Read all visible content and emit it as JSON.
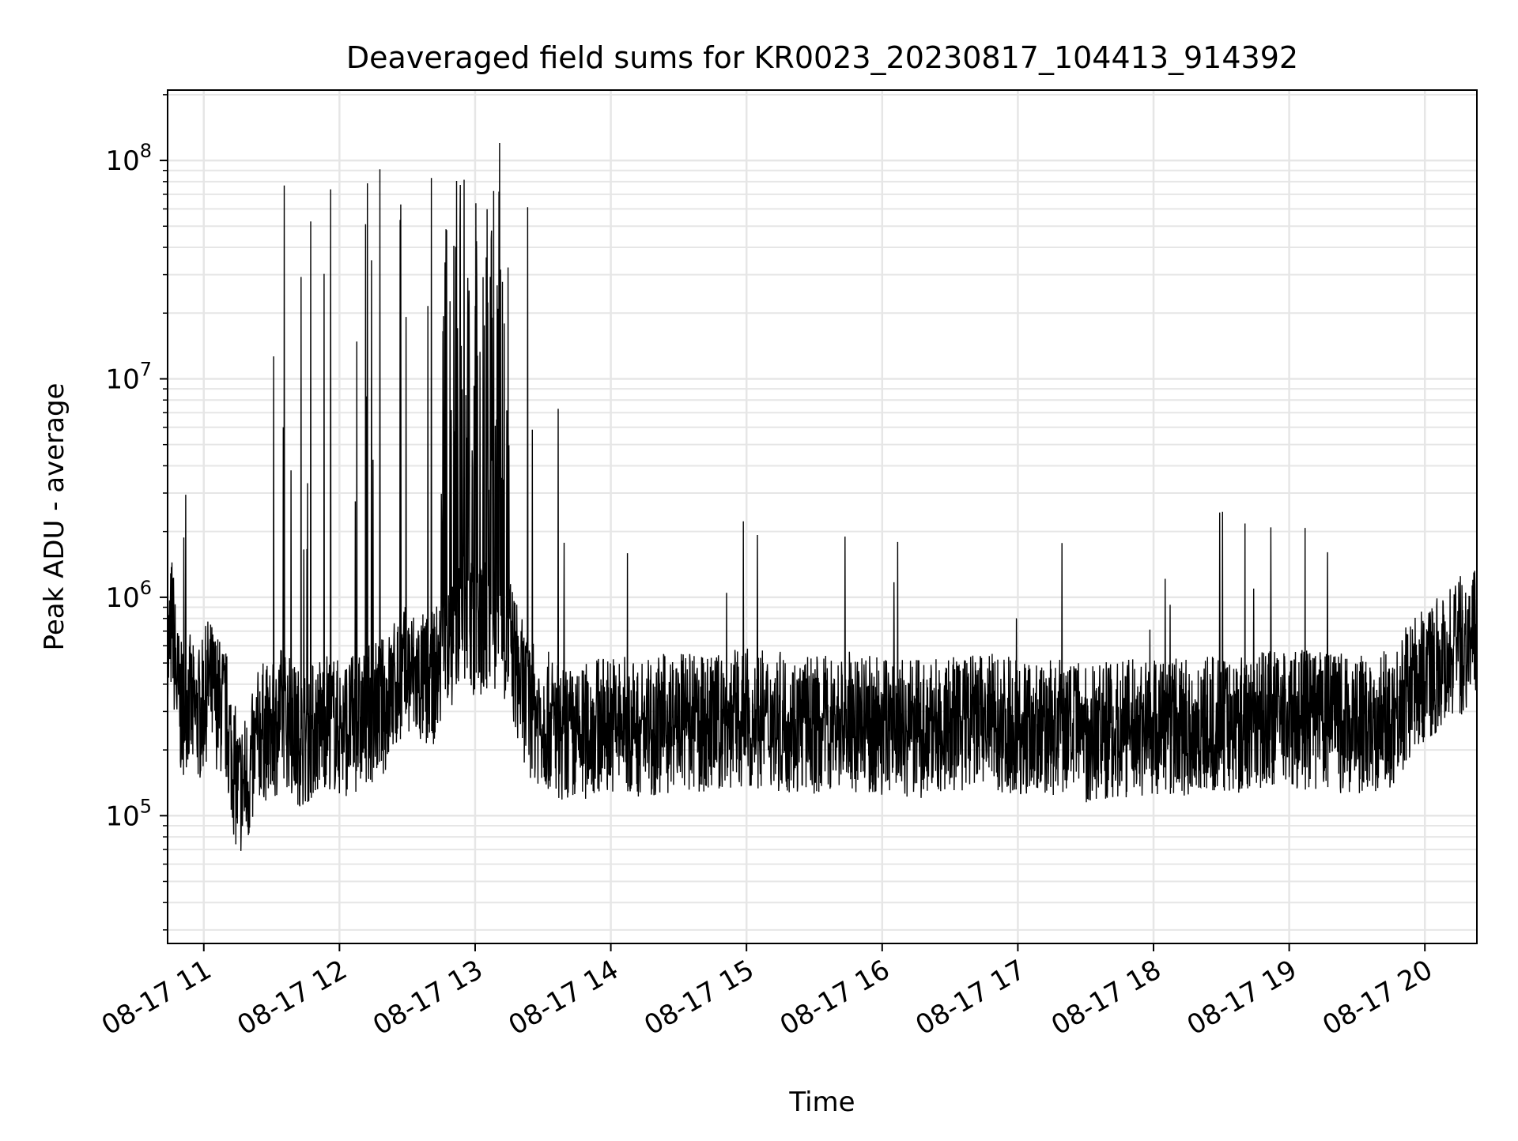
{
  "chart_data": {
    "type": "line",
    "title": "Deaveraged field sums for KR0023_20230817_104413_914392",
    "xlabel": "Time",
    "ylabel": "Peak ADU - average",
    "y_scale": "log",
    "ylim": [
      26000,
      210000000
    ],
    "xlim": [
      "2023-08-17 10:44",
      "2023-08-17 20:23"
    ],
    "x_ticks": [
      "2023-08-17 11:00",
      "2023-08-17 12:00",
      "2023-08-17 13:00",
      "2023-08-17 14:00",
      "2023-08-17 15:00",
      "2023-08-17 16:00",
      "2023-08-17 17:00",
      "2023-08-17 18:00",
      "2023-08-17 19:00",
      "2023-08-17 20:00"
    ],
    "x_tick_labels": [
      "08-17 11",
      "08-17 12",
      "08-17 13",
      "08-17 14",
      "08-17 15",
      "08-17 16",
      "08-17 17",
      "08-17 18",
      "08-17 19",
      "08-17 20"
    ],
    "y_ticks": [
      100000,
      1000000,
      10000000,
      100000000
    ],
    "y_tick_base": "10",
    "y_tick_exponents": [
      "5",
      "6",
      "7",
      "8"
    ],
    "grid": true,
    "grid_minor": true,
    "line_color": "#000000",
    "grid_color": "#e6e6e6",
    "series": [
      {
        "x": [
          "2023-08-17 10:44",
          "2023-08-17 10:46",
          "2023-08-17 10:48",
          "2023-08-17 10:50",
          "2023-08-17 10:53",
          "2023-08-17 10:56",
          "2023-08-17 10:59",
          "2023-08-17 11:02",
          "2023-08-17 11:05",
          "2023-08-17 11:10",
          "2023-08-17 11:15",
          "2023-08-17 11:20",
          "2023-08-17 11:25",
          "2023-08-17 11:30",
          "2023-08-17 11:35",
          "2023-08-17 11:40",
          "2023-08-17 11:45",
          "2023-08-17 11:50",
          "2023-08-17 11:55",
          "2023-08-17 12:00",
          "2023-08-17 12:05",
          "2023-08-17 12:10",
          "2023-08-17 12:15",
          "2023-08-17 12:20",
          "2023-08-17 12:25",
          "2023-08-17 12:30",
          "2023-08-17 12:35",
          "2023-08-17 12:40",
          "2023-08-17 12:45",
          "2023-08-17 12:50",
          "2023-08-17 12:55",
          "2023-08-17 13:00",
          "2023-08-17 13:05",
          "2023-08-17 13:10",
          "2023-08-17 13:15",
          "2023-08-17 13:20",
          "2023-08-17 13:25",
          "2023-08-17 13:30",
          "2023-08-17 13:35",
          "2023-08-17 13:40",
          "2023-08-17 13:45",
          "2023-08-17 13:50",
          "2023-08-17 13:55",
          "2023-08-17 14:00",
          "2023-08-17 14:10",
          "2023-08-17 14:20",
          "2023-08-17 14:30",
          "2023-08-17 14:40",
          "2023-08-17 14:50",
          "2023-08-17 15:00",
          "2023-08-17 15:15",
          "2023-08-17 15:30",
          "2023-08-17 15:45",
          "2023-08-17 16:00",
          "2023-08-17 16:15",
          "2023-08-17 16:30",
          "2023-08-17 16:45",
          "2023-08-17 17:00",
          "2023-08-17 17:15",
          "2023-08-17 17:30",
          "2023-08-17 17:45",
          "2023-08-17 18:00",
          "2023-08-17 18:15",
          "2023-08-17 18:30",
          "2023-08-17 18:45",
          "2023-08-17 19:00",
          "2023-08-17 19:15",
          "2023-08-17 19:30",
          "2023-08-17 19:45",
          "2023-08-17 19:55",
          "2023-08-17 20:05",
          "2023-08-17 20:15",
          "2023-08-17 20:23"
        ],
        "values": [
          500000,
          800000,
          400000,
          300000,
          350000,
          280000,
          300000,
          400000,
          350000,
          280000,
          130000,
          150000,
          250000,
          230000,
          300000,
          240000,
          220000,
          260000,
          280000,
          250000,
          260000,
          270000,
          300000,
          320000,
          400000,
          450000,
          420000,
          400000,
          500000,
          600000,
          800000,
          700000,
          700000,
          800000,
          650000,
          400000,
          300000,
          280000,
          260000,
          240000,
          220000,
          250000,
          260000,
          270000,
          250000,
          260000,
          270000,
          260000,
          270000,
          280000,
          270000,
          260000,
          270000,
          260000,
          250000,
          260000,
          270000,
          260000,
          250000,
          240000,
          250000,
          260000,
          250000,
          260000,
          270000,
          280000,
          270000,
          260000,
          280000,
          400000,
          500000,
          600000,
          650000
        ]
      }
    ]
  }
}
